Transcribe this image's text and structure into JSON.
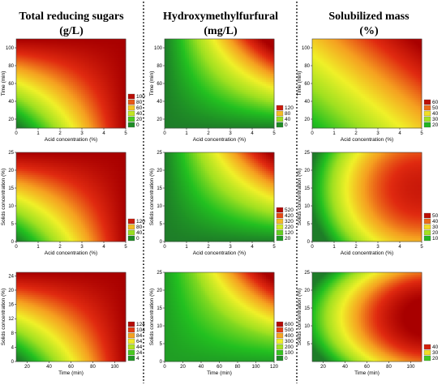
{
  "columns": [
    {
      "title_line1": "Total reducing sugars",
      "title_line2": "(g/L)"
    },
    {
      "title_line1": "Hydroxymethylfurfural",
      "title_line2": "(mg/L)"
    },
    {
      "title_line1": "Solubilized mass",
      "title_line2": "(%)"
    }
  ],
  "chart_data": [
    {
      "type": "heatmap",
      "xlabel": "Acid concentration (%)",
      "ylabel": "Time (min)",
      "xticks": [
        0,
        1,
        2,
        3,
        4,
        5
      ],
      "yticks": [
        20,
        40,
        60,
        80,
        100
      ],
      "xlim": [
        0,
        5
      ],
      "ylim": [
        10,
        110
      ],
      "legend": [
        100,
        80,
        60,
        40,
        20,
        0
      ],
      "zlim": [
        0,
        110
      ]
    },
    {
      "type": "heatmap",
      "xlabel": "Acid concentration (%)",
      "ylabel": "Time (min)",
      "xticks": [
        0,
        1,
        2,
        3,
        4,
        5
      ],
      "yticks": [
        20,
        40,
        60,
        80,
        100
      ],
      "xlim": [
        0,
        5
      ],
      "ylim": [
        10,
        110
      ],
      "legend": [
        120,
        80,
        40,
        0
      ],
      "zlim": [
        0,
        140
      ]
    },
    {
      "type": "heatmap",
      "xlabel": "Acid concentration (%)",
      "ylabel": "Time (min)",
      "xticks": [
        0,
        1,
        2,
        3,
        4,
        5
      ],
      "yticks": [
        20,
        40,
        60,
        80,
        100
      ],
      "xlim": [
        0,
        5
      ],
      "ylim": [
        10,
        110
      ],
      "legend": [
        60,
        50,
        40,
        30,
        20
      ],
      "zlim": [
        15,
        65
      ]
    },
    {
      "type": "heatmap",
      "xlabel": "Acid concentration (%)",
      "ylabel": "Solids concentration (%)",
      "xticks": [
        0,
        1,
        2,
        3,
        4,
        5
      ],
      "yticks": [
        0,
        5,
        10,
        15,
        20,
        25
      ],
      "xlim": [
        0,
        5
      ],
      "ylim": [
        0,
        25
      ],
      "legend": [
        120,
        80,
        40,
        0
      ],
      "zlim": [
        0,
        140
      ]
    },
    {
      "type": "heatmap",
      "xlabel": "Acid concentration (%)",
      "ylabel": "Solids concentration (%)",
      "xticks": [
        0,
        1,
        2,
        3,
        4,
        5
      ],
      "yticks": [
        0,
        5,
        10,
        15,
        20,
        25
      ],
      "xlim": [
        0,
        5
      ],
      "ylim": [
        0,
        25
      ],
      "legend": [
        520,
        420,
        320,
        220,
        120,
        20
      ],
      "zlim": [
        0,
        560
      ]
    },
    {
      "type": "heatmap",
      "xlabel": "Acid concentration (%)",
      "ylabel": "Solids concentration (%)",
      "xticks": [
        0,
        1,
        2,
        3,
        4,
        5
      ],
      "yticks": [
        0,
        5,
        10,
        15,
        20,
        25
      ],
      "xlim": [
        0,
        5
      ],
      "ylim": [
        0,
        25
      ],
      "legend": [
        50,
        40,
        30,
        20,
        10
      ],
      "zlim": [
        5,
        55
      ]
    },
    {
      "type": "heatmap",
      "xlabel": "Time (min)",
      "ylabel": "Solids concentration (%)",
      "xticks": [
        20,
        40,
        60,
        80,
        100
      ],
      "yticks": [
        0,
        4,
        8,
        12,
        16,
        20,
        24
      ],
      "xlim": [
        10,
        110
      ],
      "ylim": [
        0,
        25
      ],
      "legend": [
        124,
        104,
        84,
        64,
        44,
        24,
        4
      ],
      "zlim": [
        0,
        135
      ]
    },
    {
      "type": "heatmap",
      "xlabel": "Time (min)",
      "ylabel": "Solids concentration (%)",
      "xticks": [
        0,
        20,
        40,
        60,
        80,
        100,
        120
      ],
      "yticks": [
        0,
        5,
        10,
        15,
        20,
        25
      ],
      "xlim": [
        0,
        120
      ],
      "ylim": [
        0,
        25
      ],
      "legend": [
        600,
        500,
        400,
        300,
        200,
        100,
        0
      ],
      "zlim": [
        0,
        650
      ]
    },
    {
      "type": "heatmap",
      "xlabel": "Time (min)",
      "ylabel": "Solids concentration (%)",
      "xticks": [
        20,
        40,
        60,
        80,
        100
      ],
      "yticks": [
        5,
        10,
        15,
        20,
        25
      ],
      "xlim": [
        10,
        110
      ],
      "ylim": [
        0,
        25
      ],
      "legend": [
        40,
        30,
        20
      ],
      "zlim": [
        15,
        45
      ]
    }
  ],
  "colors": {
    "low": "#1e7d28",
    "mid_green": "#22c020",
    "lime": "#a0e020",
    "yellow": "#f0f028",
    "orange": "#f5a020",
    "red": "#e02a10",
    "dark_red": "#a80000",
    "divider": "#000000"
  }
}
